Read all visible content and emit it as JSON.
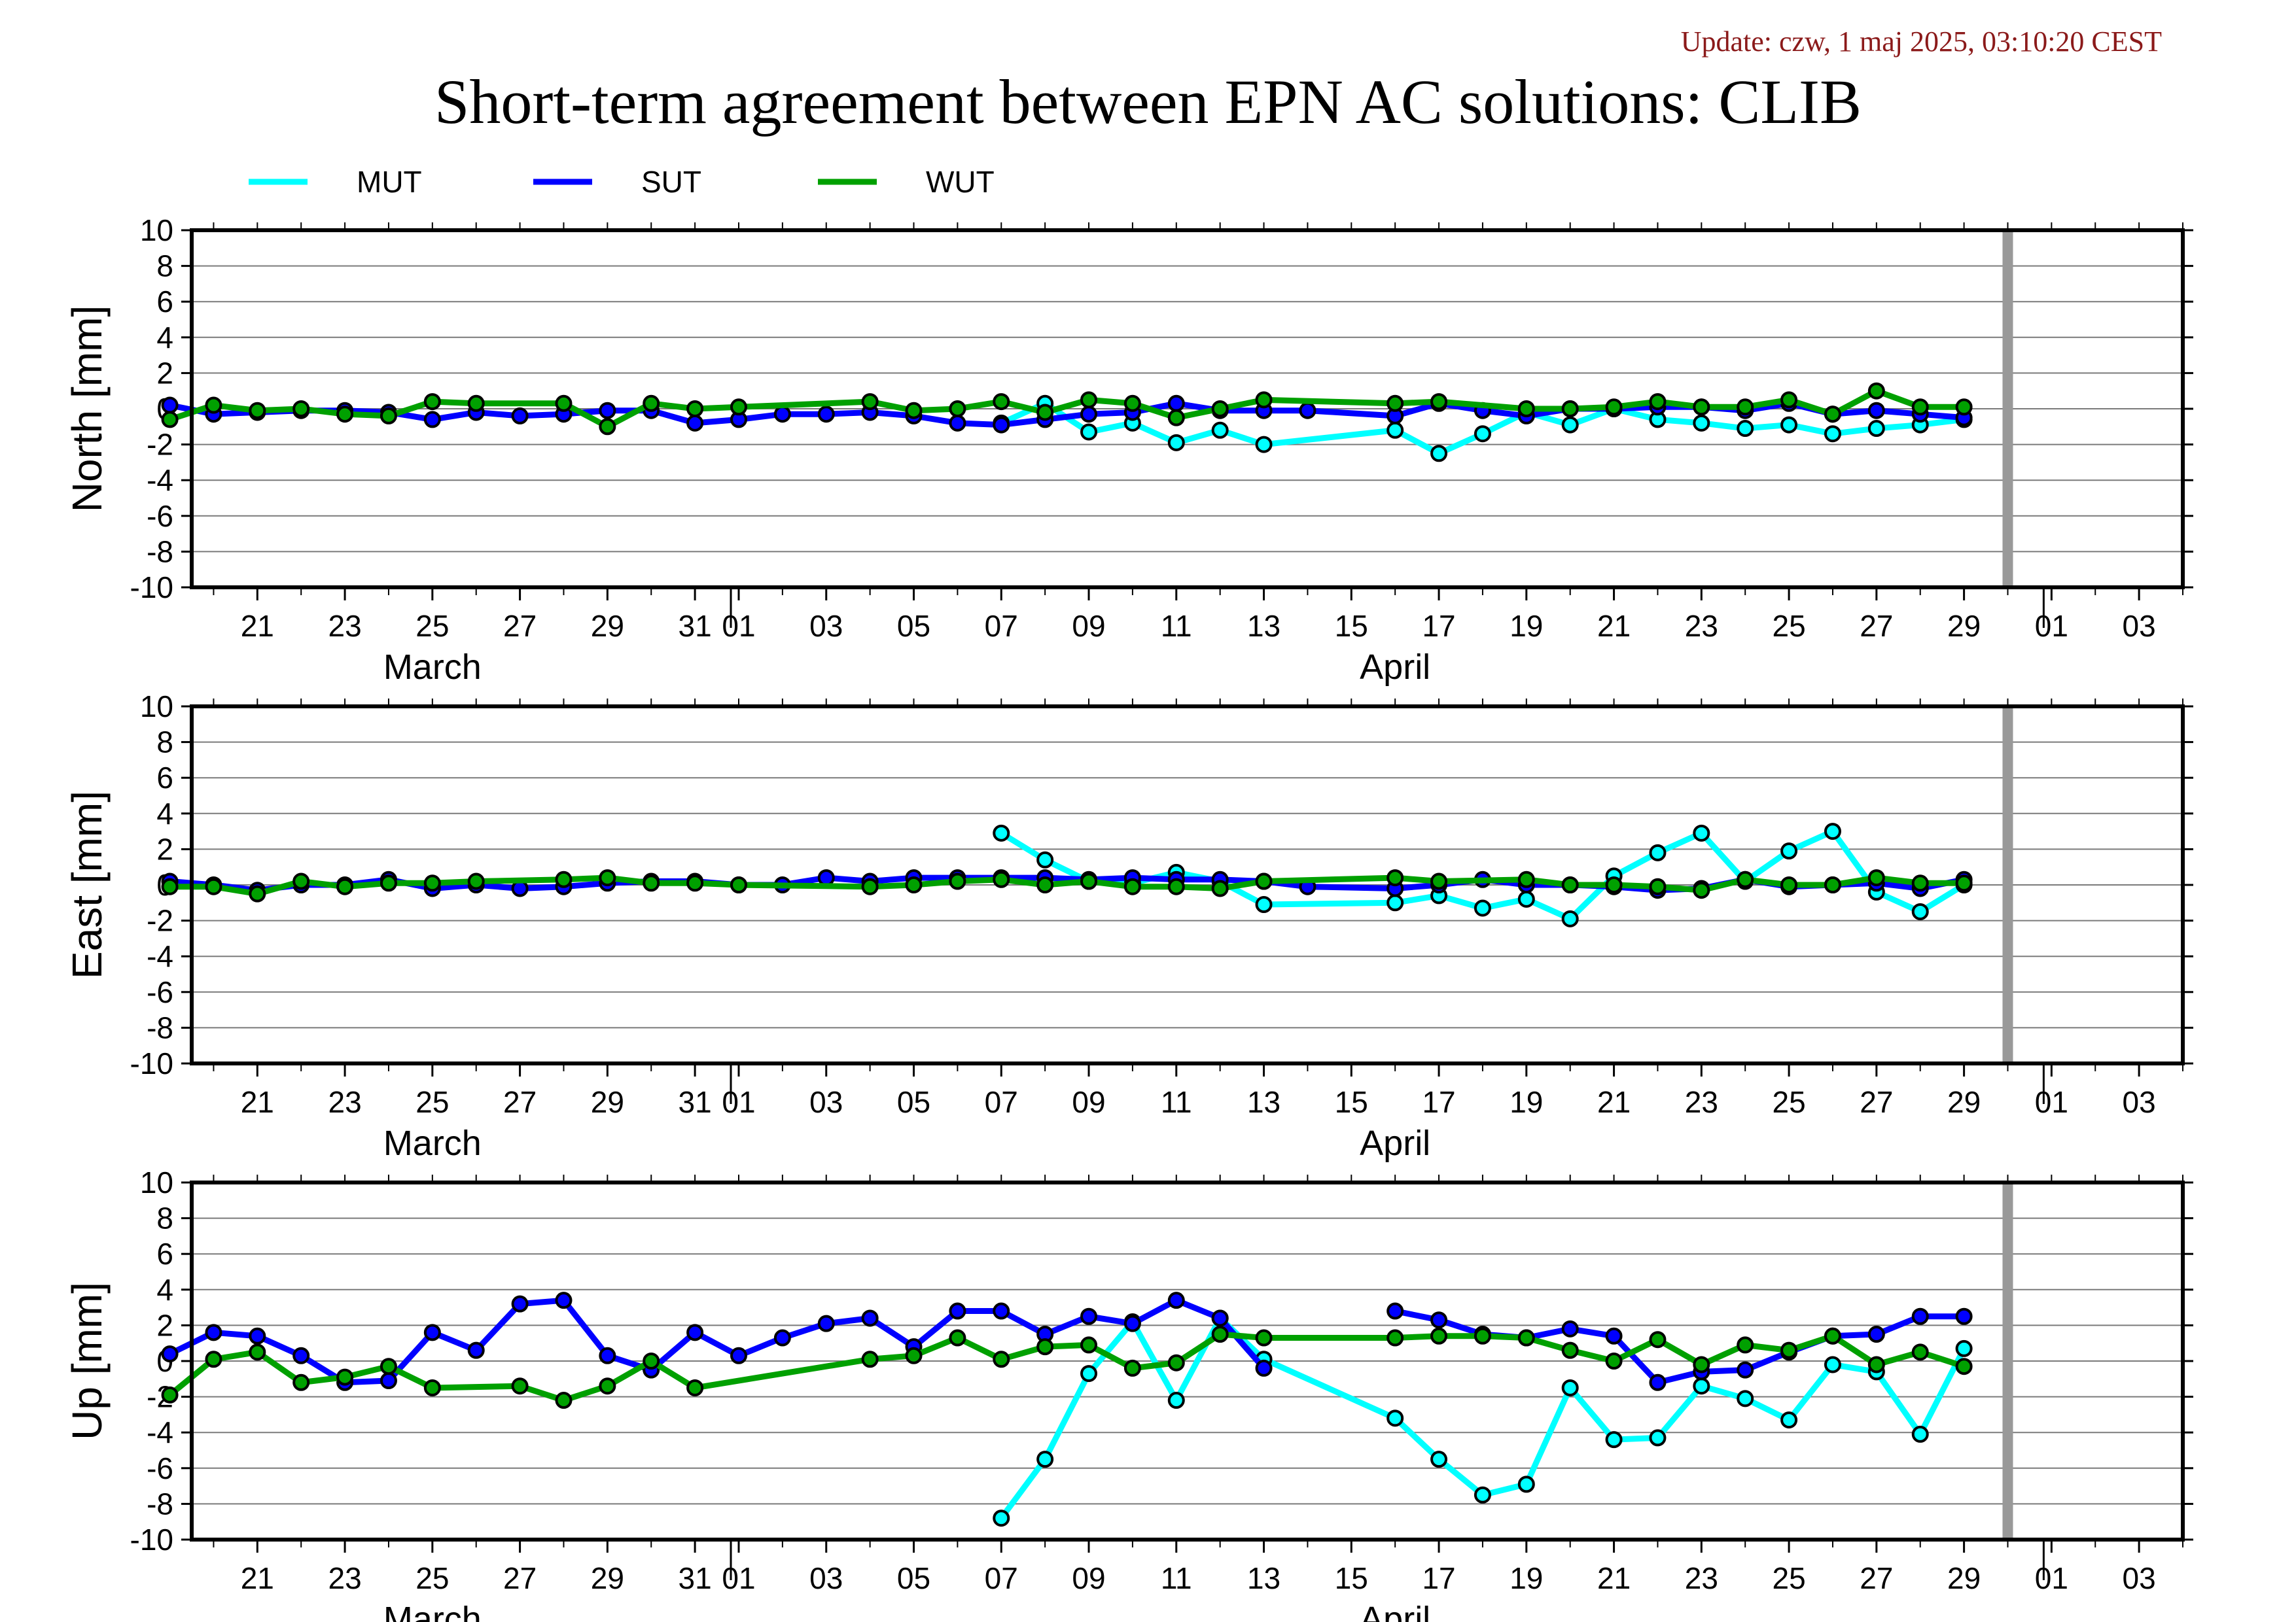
{
  "header": {
    "update": "Update: czw, 1 maj 2025, 03:10:20 CEST",
    "title": "Short-term agreement between EPN AC solutions: CLIB"
  },
  "chart_data": {
    "type": "line",
    "x_tick_labels": [
      "21",
      "23",
      "25",
      "27",
      "29",
      "31",
      "01",
      "03",
      "05",
      "07",
      "09",
      "11",
      "13",
      "15",
      "17",
      "19",
      "21",
      "23",
      "25",
      "27",
      "29",
      "01",
      "03"
    ],
    "x_tick_dates": [
      "03-21",
      "03-23",
      "03-25",
      "03-27",
      "03-29",
      "03-31",
      "04-01",
      "04-03",
      "04-05",
      "04-07",
      "04-09",
      "04-11",
      "04-13",
      "04-15",
      "04-17",
      "04-19",
      "04-21",
      "04-23",
      "04-25",
      "04-27",
      "04-29",
      "05-01",
      "05-03"
    ],
    "month_labels": [
      {
        "label": "March",
        "date": "03-25"
      },
      {
        "label": "April",
        "date": "04-16"
      }
    ],
    "xlim": [
      "03-19 12:00",
      "05-04 00:00"
    ],
    "current_date_marker": "04-30",
    "series_colors": {
      "MUT": "#00ffff",
      "SUT": "#0000ff",
      "WUT": "#00a000"
    },
    "legend": [
      {
        "name": "MUT",
        "color": "#00ffff"
      },
      {
        "name": "SUT",
        "color": "#0000ff"
      },
      {
        "name": "WUT",
        "color": "#00a000"
      }
    ],
    "panels": [
      {
        "ylabel": "North [mm]",
        "ylim": [
          -10,
          10
        ],
        "yticks": [
          "10",
          "8",
          "6",
          "4",
          "2",
          "0",
          "-2",
          "-4",
          "-6",
          "-8",
          "-10"
        ],
        "series": [
          {
            "name": "MUT",
            "dates": [
              "04-07",
              "04-08",
              "04-09",
              "04-10",
              "04-11",
              "04-12",
              "04-13",
              "04-16",
              "04-17",
              "04-18",
              "04-19",
              "04-20",
              "04-21",
              "04-22",
              "04-23",
              "04-24",
              "04-25",
              "04-26",
              "04-27",
              "04-28",
              "04-29"
            ],
            "values": [
              -0.8,
              0.3,
              -1.3,
              -0.8,
              -1.9,
              -1.2,
              -2.0,
              -1.2,
              -2.5,
              -1.4,
              -0.2,
              -0.9,
              0.0,
              -0.6,
              -0.8,
              -1.1,
              -0.9,
              -1.4,
              -1.1,
              -0.9,
              -0.6
            ]
          },
          {
            "name": "SUT",
            "dates": [
              "03-19",
              "03-20",
              "03-21",
              "03-22",
              "03-23",
              "03-24",
              "03-25",
              "03-26",
              "03-27",
              "03-28",
              "03-29",
              "03-30",
              "03-31",
              "04-01",
              "04-02",
              "04-03",
              "04-04",
              "04-05",
              "04-06",
              "04-07",
              "04-08",
              "04-09",
              "04-10",
              "04-11",
              "04-12",
              "04-13",
              "04-14",
              "04-16",
              "04-17",
              "04-18",
              "04-19",
              "04-20",
              "04-21",
              "04-22",
              "04-23",
              "04-24",
              "04-25",
              "04-26",
              "04-27",
              "04-28",
              "04-29"
            ],
            "values": [
              0.2,
              -0.3,
              -0.2,
              -0.1,
              -0.1,
              -0.2,
              -0.6,
              -0.2,
              -0.4,
              -0.3,
              -0.1,
              -0.1,
              -0.8,
              -0.6,
              -0.3,
              -0.3,
              -0.2,
              -0.4,
              -0.8,
              -0.9,
              -0.6,
              -0.3,
              -0.2,
              0.3,
              -0.1,
              -0.1,
              -0.1,
              -0.4,
              0.3,
              -0.1,
              -0.4,
              0.0,
              0.0,
              0.1,
              0.1,
              -0.1,
              0.3,
              -0.3,
              -0.1,
              -0.3,
              -0.5
            ]
          },
          {
            "name": "WUT",
            "dates": [
              "03-19",
              "03-20",
              "03-21",
              "03-22",
              "03-23",
              "03-24",
              "03-25",
              "03-26",
              "03-28",
              "03-29",
              "03-30",
              "03-31",
              "04-01",
              "04-04",
              "04-05",
              "04-06",
              "04-07",
              "04-08",
              "04-09",
              "04-10",
              "04-11",
              "04-12",
              "04-13",
              "04-16",
              "04-17",
              "04-19",
              "04-20",
              "04-21",
              "04-22",
              "04-23",
              "04-24",
              "04-25",
              "04-26",
              "04-27",
              "04-28",
              "04-29"
            ],
            "values": [
              -0.6,
              0.2,
              -0.1,
              0.0,
              -0.3,
              -0.4,
              0.4,
              0.3,
              0.3,
              -1.0,
              0.3,
              0.0,
              0.1,
              0.4,
              -0.1,
              0.0,
              0.4,
              -0.2,
              0.5,
              0.3,
              -0.5,
              0.0,
              0.5,
              0.3,
              0.4,
              0.0,
              0.0,
              0.1,
              0.4,
              0.1,
              0.1,
              0.5,
              -0.3,
              1.0,
              0.1,
              0.1
            ]
          }
        ]
      },
      {
        "ylabel": "East [mm]",
        "ylim": [
          -10,
          10
        ],
        "yticks": [
          "10",
          "8",
          "6",
          "4",
          "2",
          "0",
          "-2",
          "-4",
          "-6",
          "-8",
          "-10"
        ],
        "series": [
          {
            "name": "MUT",
            "dates": [
              "04-07",
              "04-08",
              "04-09",
              "04-10",
              "04-11",
              "04-12",
              "04-13",
              "04-16",
              "04-17",
              "04-18",
              "04-19",
              "04-20",
              "04-21",
              "04-22",
              "04-23",
              "04-24",
              "04-25",
              "04-26",
              "04-27",
              "04-28",
              "04-29"
            ],
            "values": [
              2.9,
              1.4,
              0.2,
              0.1,
              0.7,
              0.2,
              -1.1,
              -1.0,
              -0.6,
              -1.3,
              -0.8,
              -1.9,
              0.5,
              1.8,
              2.9,
              0.2,
              1.9,
              3.0,
              -0.4,
              -1.5,
              0.0
            ]
          },
          {
            "name": "SUT",
            "dates": [
              "03-19",
              "03-20",
              "03-21",
              "03-22",
              "03-23",
              "03-24",
              "03-25",
              "03-26",
              "03-27",
              "03-28",
              "03-29",
              "03-30",
              "03-31",
              "04-01",
              "04-02",
              "04-03",
              "04-04",
              "04-05",
              "04-06",
              "04-07",
              "04-08",
              "04-09",
              "04-10",
              "04-11",
              "04-12",
              "04-13",
              "04-14",
              "04-16",
              "04-17",
              "04-18",
              "04-19",
              "04-20",
              "04-21",
              "04-22",
              "04-23",
              "04-24",
              "04-25",
              "04-26",
              "04-27",
              "04-28",
              "04-29"
            ],
            "values": [
              0.2,
              0.0,
              -0.3,
              0.0,
              0.0,
              0.3,
              -0.2,
              0.0,
              -0.2,
              -0.1,
              0.1,
              0.2,
              0.2,
              0.0,
              0.0,
              0.4,
              0.2,
              0.4,
              0.4,
              0.4,
              0.4,
              0.3,
              0.4,
              0.3,
              0.3,
              0.2,
              -0.1,
              -0.2,
              0.0,
              0.3,
              0.0,
              0.0,
              -0.1,
              -0.3,
              -0.2,
              0.3,
              -0.1,
              0.0,
              0.1,
              -0.2,
              0.3
            ]
          },
          {
            "name": "WUT",
            "dates": [
              "03-19",
              "03-20",
              "03-21",
              "03-22",
              "03-23",
              "03-24",
              "03-25",
              "03-26",
              "03-28",
              "03-29",
              "03-30",
              "03-31",
              "04-01",
              "04-04",
              "04-05",
              "04-06",
              "04-07",
              "04-08",
              "04-09",
              "04-10",
              "04-11",
              "04-12",
              "04-13",
              "04-16",
              "04-17",
              "04-19",
              "04-20",
              "04-21",
              "04-22",
              "04-23",
              "04-24",
              "04-25",
              "04-26",
              "04-27",
              "04-28",
              "04-29"
            ],
            "values": [
              -0.1,
              -0.1,
              -0.5,
              0.2,
              -0.1,
              0.1,
              0.1,
              0.2,
              0.3,
              0.4,
              0.1,
              0.1,
              0.0,
              -0.1,
              0.0,
              0.2,
              0.3,
              0.0,
              0.2,
              -0.1,
              -0.1,
              -0.2,
              0.2,
              0.4,
              0.2,
              0.3,
              0.0,
              0.0,
              -0.1,
              -0.3,
              0.3,
              0.0,
              0.0,
              0.4,
              0.1,
              0.1
            ]
          }
        ]
      },
      {
        "ylabel": "Up [mm]",
        "ylim": [
          -10,
          10
        ],
        "yticks": [
          "10",
          "8",
          "6",
          "4",
          "2",
          "0",
          "-2",
          "-4",
          "-6",
          "-8",
          "-10"
        ],
        "series": [
          {
            "name": "MUT",
            "dates": [
              "04-07",
              "04-08",
              "04-09",
              "04-10",
              "04-11",
              "04-12",
              "04-13",
              "04-16",
              "04-17",
              "04-18",
              "04-19",
              "04-20",
              "04-21",
              "04-22",
              "04-23",
              "04-24",
              "04-25",
              "04-26",
              "04-27",
              "04-28",
              "04-29"
            ],
            "values": [
              -8.8,
              -5.5,
              -0.7,
              2.2,
              -2.2,
              2.4,
              0.1,
              -3.2,
              -5.5,
              -7.5,
              -6.9,
              -1.5,
              -4.4,
              -4.3,
              -1.4,
              -2.1,
              -3.3,
              -0.2,
              -0.6,
              -4.1,
              0.7
            ]
          },
          {
            "name": "SUT",
            "dates": [
              "03-19",
              "03-20",
              "03-21",
              "03-22",
              "03-23",
              "03-24",
              "03-25",
              "03-26",
              "03-27",
              "03-28",
              "03-29",
              "03-30",
              "03-31",
              "04-01",
              "04-02",
              "04-03",
              "04-04",
              "04-05",
              "04-06",
              "04-07",
              "04-08",
              "04-09",
              "04-10",
              "04-11",
              "04-12",
              "04-13",
              "04-14",
              "04-16",
              "04-17",
              "04-18",
              "04-19",
              "04-20",
              "04-21",
              "04-22",
              "04-23",
              "04-24",
              "04-25",
              "04-26",
              "04-27",
              "04-28",
              "04-29"
            ],
            "values": [
              0.4,
              1.6,
              1.4,
              0.3,
              -1.2,
              -1.1,
              1.6,
              0.6,
              3.2,
              3.4,
              0.3,
              -0.5,
              1.6,
              0.3,
              1.3,
              2.1,
              2.4,
              0.8,
              2.8,
              2.8,
              1.5,
              2.5,
              2.1,
              3.4,
              2.4,
              -0.4,
              null,
              2.8,
              2.3,
              1.5,
              1.3,
              1.8,
              1.4,
              -1.2,
              -0.6,
              -0.5,
              0.5,
              1.4,
              1.5,
              2.5,
              2.5
            ]
          },
          {
            "name": "WUT",
            "dates": [
              "03-19",
              "03-20",
              "03-21",
              "03-22",
              "03-23",
              "03-24",
              "03-25",
              "03-27",
              "03-28",
              "03-29",
              "03-30",
              "03-31",
              "04-04",
              "04-05",
              "04-06",
              "04-07",
              "04-08",
              "04-09",
              "04-10",
              "04-11",
              "04-12",
              "04-13",
              "04-16",
              "04-17",
              "04-18",
              "04-19",
              "04-20",
              "04-21",
              "04-22",
              "04-23",
              "04-24",
              "04-25",
              "04-26",
              "04-27",
              "04-28",
              "04-29"
            ],
            "values": [
              -1.9,
              0.1,
              0.5,
              -1.2,
              -0.9,
              -0.3,
              -1.5,
              -1.4,
              -2.2,
              -1.4,
              0.0,
              -1.5,
              0.1,
              0.3,
              1.3,
              0.1,
              0.8,
              0.9,
              -0.4,
              -0.1,
              1.5,
              1.3,
              1.3,
              1.4,
              1.4,
              1.3,
              0.6,
              0.0,
              1.2,
              -0.2,
              0.9,
              0.6,
              1.4,
              -0.2,
              0.5,
              -0.3
            ]
          }
        ]
      }
    ]
  }
}
